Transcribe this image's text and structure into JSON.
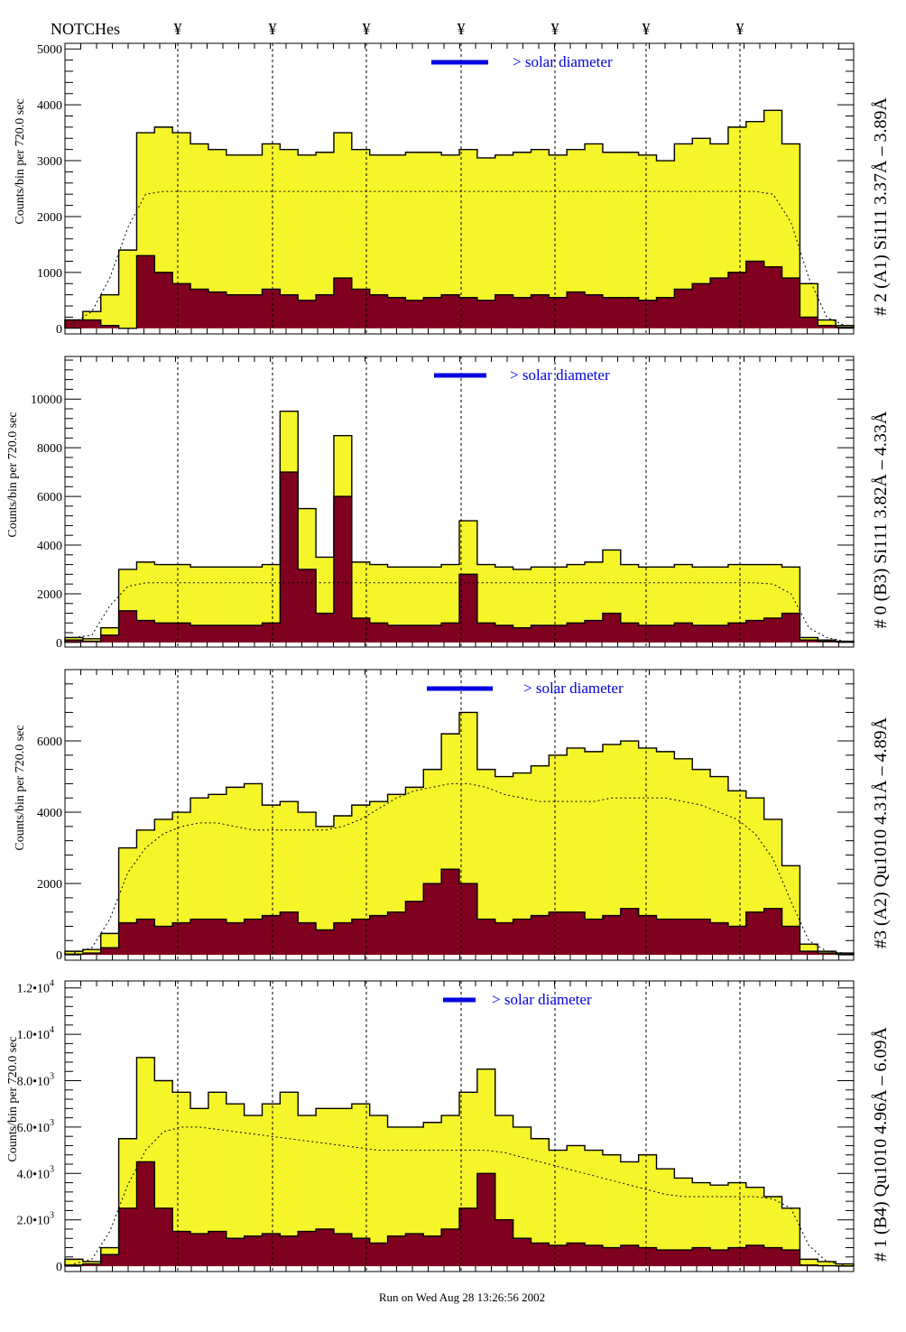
{
  "header": {
    "notches_label": "NOTCHes",
    "notch_symbol": "¥",
    "notch_count": 7
  },
  "footer": {
    "run_text": "Run on Wed Aug 28 13:26:56 2002"
  },
  "colors": {
    "total_fill": "#f5f52a",
    "sub_fill": "#800020",
    "solar_bar": "#0000e0",
    "solar_text": "#0000e0"
  },
  "chart_data": [
    {
      "type": "histogram",
      "title": "# 2 (A1) Si111  3.37Å – 3.89Å",
      "ylabel": "Counts/bin per   720.0 sec",
      "annotation": "> solar diameter",
      "ylim": [
        -100,
        5100
      ],
      "yticks": [
        {
          "v": 0,
          "t": "0"
        },
        {
          "v": 1000,
          "t": "1000"
        },
        {
          "v": 2000,
          "t": "2000"
        },
        {
          "v": 3000,
          "t": "3000"
        },
        {
          "v": 4000,
          "t": "4000"
        },
        {
          "v": 5000,
          "t": "5000"
        }
      ],
      "series": [
        {
          "values": [
            150,
            300,
            600,
            1400,
            3500,
            3600,
            3500,
            3300,
            3200,
            3100,
            3100,
            3300,
            3200,
            3100,
            3150,
            3500,
            3200,
            3100,
            3100,
            3150,
            3150,
            3100,
            3200,
            3050,
            3100,
            3150,
            3200,
            3100,
            3200,
            3300,
            3150,
            3150,
            3100,
            3000,
            3300,
            3400,
            3300,
            3600,
            3700,
            3900,
            3300,
            800,
            150,
            50
          ]
        },
        {
          "values": [
            150,
            150,
            50,
            0,
            1300,
            1000,
            800,
            700,
            650,
            600,
            600,
            700,
            600,
            500,
            600,
            900,
            700,
            600,
            550,
            500,
            550,
            600,
            550,
            500,
            600,
            550,
            600,
            550,
            650,
            600,
            550,
            550,
            500,
            550,
            700,
            800,
            900,
            1000,
            1200,
            1100,
            900,
            200,
            50,
            20
          ]
        },
        {
          "style": "dotted",
          "values": [
            100,
            300,
            900,
            1800,
            2400,
            2450,
            2450,
            2450,
            2450,
            2450,
            2450,
            2450,
            2450,
            2450,
            2450,
            2450,
            2450,
            2450,
            2450,
            2450,
            2450,
            2450,
            2450,
            2450,
            2450,
            2450,
            2450,
            2450,
            2450,
            2450,
            2450,
            2450,
            2450,
            2450,
            2450,
            2450,
            2450,
            2450,
            2450,
            2400,
            1900,
            900,
            200,
            50
          ]
        }
      ]
    },
    {
      "type": "histogram",
      "title": "# 0 (B3) Si111  3.82Å – 4.33Å",
      "ylabel": "Counts/bin per   720.0 sec",
      "annotation": "> solar diameter",
      "ylim": [
        -190,
        11750
      ],
      "yticks": [
        {
          "v": 0,
          "t": "0"
        },
        {
          "v": 2000,
          "t": "2000"
        },
        {
          "v": 4000,
          "t": "4000"
        },
        {
          "v": 6000,
          "t": "6000"
        },
        {
          "v": 8000,
          "t": "8000"
        },
        {
          "v": 10000,
          "t": "10000"
        }
      ],
      "series": [
        {
          "values": [
            200,
            150,
            600,
            3000,
            3300,
            3200,
            3200,
            3100,
            3100,
            3100,
            3100,
            3200,
            9500,
            5500,
            3500,
            8500,
            3300,
            3200,
            3100,
            3100,
            3100,
            3200,
            5000,
            3200,
            3100,
            3000,
            3100,
            3100,
            3200,
            3300,
            3800,
            3200,
            3100,
            3100,
            3200,
            3100,
            3100,
            3200,
            3200,
            3200,
            3100,
            200,
            100,
            50
          ]
        },
        {
          "values": [
            100,
            50,
            300,
            1300,
            900,
            800,
            800,
            700,
            700,
            700,
            700,
            800,
            7000,
            3000,
            1200,
            6000,
            1000,
            800,
            700,
            700,
            700,
            800,
            2800,
            800,
            700,
            600,
            700,
            700,
            800,
            900,
            1200,
            800,
            700,
            700,
            800,
            700,
            700,
            800,
            900,
            1000,
            1200,
            100,
            50,
            20
          ]
        },
        {
          "style": "dotted",
          "values": [
            200,
            300,
            1500,
            2300,
            2450,
            2450,
            2450,
            2450,
            2450,
            2450,
            2450,
            2450,
            2450,
            2450,
            2450,
            2450,
            2450,
            2450,
            2450,
            2450,
            2450,
            2450,
            2450,
            2450,
            2450,
            2450,
            2450,
            2450,
            2450,
            2450,
            2450,
            2450,
            2450,
            2450,
            2450,
            2450,
            2450,
            2450,
            2450,
            2400,
            2000,
            600,
            200,
            50
          ]
        }
      ]
    },
    {
      "type": "histogram",
      "title": "#3 (A2) Qu1010  4.31Å – 4.89Å",
      "ylabel": "Counts/bin per   720.0 sec",
      "annotation": "> solar diameter",
      "ylim": [
        -150,
        8000
      ],
      "yticks": [
        {
          "v": 0,
          "t": "0"
        },
        {
          "v": 2000,
          "t": "2000"
        },
        {
          "v": 4000,
          "t": "4000"
        },
        {
          "v": 6000,
          "t": "6000"
        }
      ],
      "series": [
        {
          "values": [
            100,
            150,
            600,
            3000,
            3500,
            3800,
            4000,
            4400,
            4500,
            4700,
            4800,
            4200,
            4300,
            4000,
            3600,
            3900,
            4200,
            4300,
            4500,
            4700,
            5200,
            6200,
            6800,
            5200,
            5000,
            5100,
            5300,
            5600,
            5800,
            5700,
            5900,
            6000,
            5800,
            5700,
            5500,
            5200,
            5000,
            4600,
            4400,
            3800,
            2500,
            300,
            100,
            50
          ]
        },
        {
          "values": [
            20,
            50,
            200,
            900,
            1000,
            800,
            900,
            1000,
            1000,
            900,
            1000,
            1100,
            1200,
            900,
            700,
            900,
            1000,
            1100,
            1200,
            1500,
            2000,
            2400,
            2000,
            1000,
            900,
            1000,
            1100,
            1200,
            1200,
            1000,
            1100,
            1300,
            1100,
            1000,
            1000,
            1000,
            900,
            800,
            1200,
            1300,
            800,
            100,
            50,
            20
          ]
        },
        {
          "style": "dotted",
          "values": [
            50,
            200,
            1000,
            2300,
            3000,
            3400,
            3600,
            3700,
            3700,
            3600,
            3500,
            3500,
            3500,
            3500,
            3500,
            3600,
            3800,
            4100,
            4400,
            4600,
            4700,
            4800,
            4800,
            4700,
            4500,
            4400,
            4300,
            4300,
            4300,
            4300,
            4400,
            4400,
            4400,
            4400,
            4300,
            4200,
            4000,
            3800,
            3400,
            2700,
            1500,
            400,
            100,
            50
          ]
        }
      ]
    },
    {
      "type": "histogram",
      "title": "# 1 (B4) Qu1010 4.96Å – 6.09Å",
      "ylabel": "Counts/bin per   720.0 sec",
      "annotation": "> solar diameter",
      "ylim": [
        -230,
        12300
      ],
      "yticks": [
        {
          "v": 0,
          "t": "0"
        },
        {
          "v": 2000,
          "t": "2.0•10",
          "e": "3"
        },
        {
          "v": 4000,
          "t": "4.0•10",
          "e": "3"
        },
        {
          "v": 6000,
          "t": "6.0•10",
          "e": "3"
        },
        {
          "v": 8000,
          "t": "8.0•10",
          "e": "3"
        },
        {
          "v": 10000,
          "t": "1.0•10",
          "e": "4"
        },
        {
          "v": 12000,
          "t": "1.2•10",
          "e": "4"
        }
      ],
      "series": [
        {
          "values": [
            300,
            200,
            800,
            5500,
            9000,
            8000,
            7500,
            6800,
            7500,
            7000,
            6500,
            7000,
            7500,
            6500,
            6800,
            6800,
            7000,
            6500,
            6000,
            6000,
            6200,
            6500,
            7500,
            8500,
            6500,
            6000,
            5500,
            5000,
            5200,
            5000,
            4800,
            4500,
            4800,
            4200,
            3800,
            3600,
            3500,
            3600,
            3400,
            3000,
            2500,
            300,
            200,
            100
          ]
        },
        {
          "values": [
            50,
            100,
            500,
            2500,
            4500,
            2500,
            1500,
            1400,
            1500,
            1200,
            1300,
            1400,
            1300,
            1500,
            1600,
            1400,
            1200,
            1000,
            1300,
            1400,
            1300,
            1600,
            2500,
            4000,
            2000,
            1200,
            1000,
            900,
            1000,
            900,
            800,
            900,
            800,
            700,
            700,
            800,
            700,
            800,
            900,
            800,
            700,
            50,
            20,
            10
          ]
        },
        {
          "style": "dotted",
          "values": [
            100,
            300,
            1500,
            3500,
            5000,
            5800,
            6000,
            6000,
            5900,
            5800,
            5700,
            5600,
            5500,
            5400,
            5300,
            5200,
            5100,
            5000,
            5000,
            5000,
            5000,
            5000,
            5000,
            5000,
            4900,
            4700,
            4500,
            4300,
            4100,
            3900,
            3700,
            3500,
            3300,
            3100,
            3000,
            3000,
            3000,
            3000,
            3000,
            2900,
            2500,
            900,
            200,
            50
          ]
        }
      ]
    }
  ]
}
